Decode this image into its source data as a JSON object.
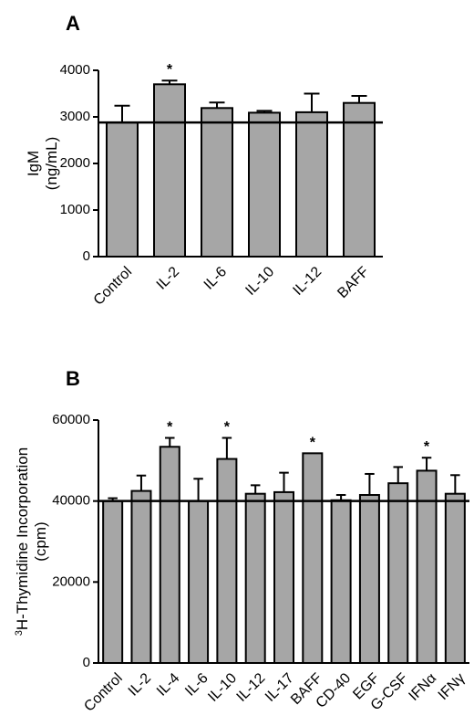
{
  "chart_data": [
    {
      "type": "bar",
      "panel_label": "A",
      "ylabel_line1": "IgM",
      "ylabel_line2": "(ng/mL)",
      "categories": [
        "Control",
        "IL-2",
        "IL-6",
        "IL-10",
        "IL-12",
        "BAFF"
      ],
      "values": [
        2880,
        3700,
        3190,
        3090,
        3100,
        3300
      ],
      "errors": [
        360,
        80,
        120,
        40,
        400,
        150
      ],
      "significant": [
        false,
        true,
        false,
        false,
        false,
        false
      ],
      "significance_marker": "*",
      "control_reference_line": 2880,
      "ylim": [
        0,
        4000
      ],
      "yticks": [
        "0",
        "1000",
        "2000",
        "3000",
        "4000"
      ],
      "bar_color": "#a6a6a6"
    },
    {
      "type": "bar",
      "panel_label": "B",
      "ylabel_line1_sup": "3",
      "ylabel_line1": "H-Thymidine Incorporation",
      "ylabel_line2": "(cpm)",
      "categories": [
        "Control",
        "IL-2",
        "IL-4",
        "IL-6",
        "IL-10",
        "IL-12",
        "IL-17",
        "BAFF",
        "CD-40",
        "EGF",
        "G-CSF",
        "IFNα",
        "IFNγ"
      ],
      "values": [
        40000,
        42500,
        53400,
        40000,
        50400,
        41800,
        42200,
        51800,
        40200,
        41500,
        44400,
        47500,
        41800
      ],
      "errors": [
        700,
        3800,
        2200,
        5500,
        5200,
        2100,
        4800,
        0,
        1300,
        5200,
        4000,
        3200,
        4600
      ],
      "significant": [
        false,
        false,
        true,
        false,
        true,
        false,
        false,
        true,
        false,
        false,
        false,
        true,
        false
      ],
      "significance_marker": "*",
      "control_reference_line": 40000,
      "ylim": [
        0,
        60000
      ],
      "yticks": [
        "0",
        "20000",
        "40000",
        "60000"
      ],
      "bar_color": "#a6a6a6"
    }
  ]
}
